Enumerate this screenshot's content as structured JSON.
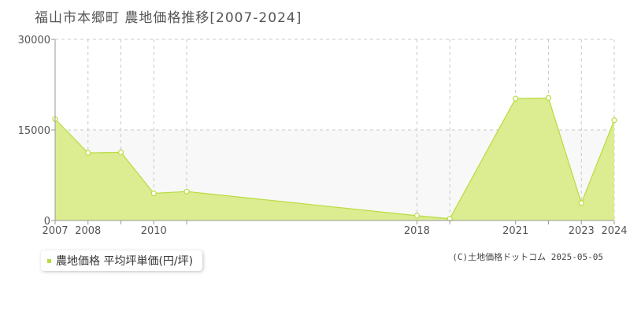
{
  "title": "福山市本郷町 農地価格推移[2007-2024]",
  "copyright": "(C)土地価格ドットコム 2025-05-05",
  "colors": {
    "fill": "#dcec90",
    "line": "#b8dc40",
    "point_stroke": "#b8dc40",
    "band": "#f8f8f8",
    "grid": "#c8c8c8",
    "axis": "#999999",
    "legend_swatch": "#b8dc40"
  },
  "chart_data": {
    "type": "area",
    "title": "福山市本郷町 農地価格推移[2007-2024]",
    "xlabel": "",
    "ylabel": "",
    "x": [
      2007,
      2008,
      2009,
      2010,
      2011,
      2018,
      2019,
      2021,
      2022,
      2023,
      2024
    ],
    "series": [
      {
        "name": "農地価格 平均坪単価(円/坪)",
        "values": [
          16800,
          11200,
          11300,
          4500,
          4800,
          800,
          300,
          20200,
          20300,
          2900,
          16600
        ]
      }
    ],
    "x_tick_labels": [
      "2007",
      "2008",
      "2010",
      "2018",
      "2021",
      "2023",
      "2024"
    ],
    "y_ticks": [
      0,
      15000,
      30000
    ],
    "y_tick_labels": [
      "0",
      "15000",
      "30000"
    ],
    "ylim": [
      0,
      30000
    ],
    "grid": true,
    "legend": "bottom-left"
  }
}
